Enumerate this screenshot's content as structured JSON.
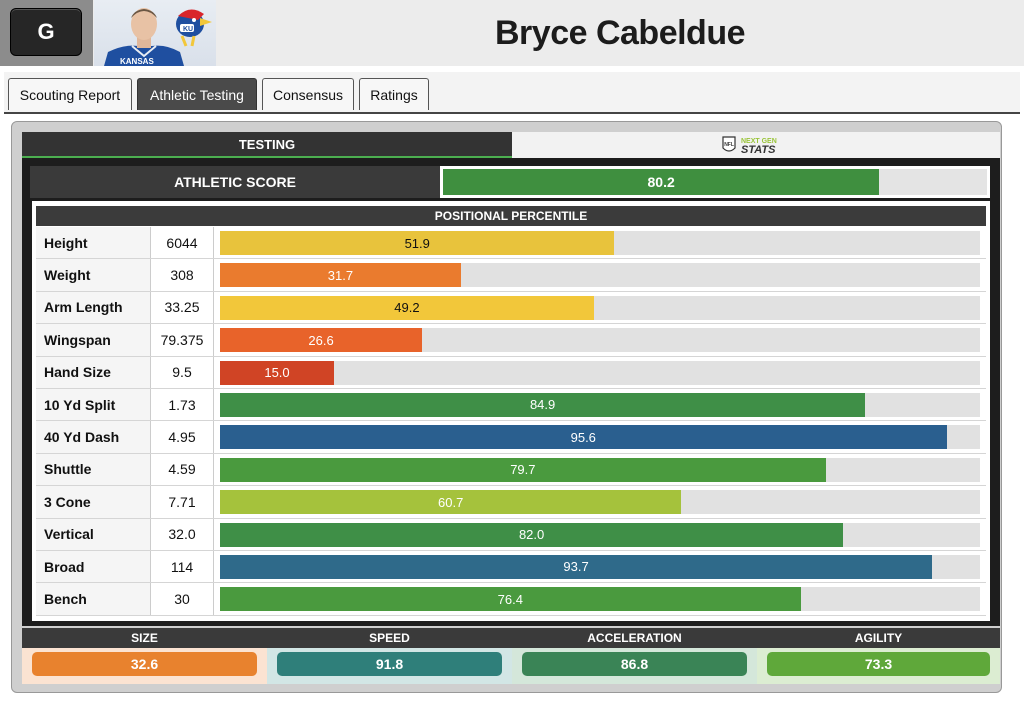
{
  "header": {
    "position": "G",
    "player_name": "Bryce Cabeldue",
    "photo_text": "KANSAS",
    "logo_text": "KU"
  },
  "tabs": [
    {
      "label": "Scouting Report",
      "active": false
    },
    {
      "label": "Athletic Testing",
      "active": true
    },
    {
      "label": "Consensus",
      "active": false
    },
    {
      "label": "Ratings",
      "active": false
    }
  ],
  "subtabs": {
    "testing": "TESTING",
    "ngs_top": "NEXT GEN",
    "ngs_bottom": "STATS",
    "ngs_badge": "NFL"
  },
  "athletic_score": {
    "label": "ATHLETIC SCORE",
    "value": 80.2,
    "display": "80.2",
    "color": "#3f8f3f"
  },
  "percentile_header": "POSITIONAL PERCENTILE",
  "metrics": [
    {
      "label": "Height",
      "value": "6044",
      "percentile": 51.9,
      "display": "51.9",
      "color": "#e8c33c",
      "text_color": "#111111"
    },
    {
      "label": "Weight",
      "value": "308",
      "percentile": 31.7,
      "display": "31.7",
      "color": "#ea7b2e",
      "text_color": "#ffffff"
    },
    {
      "label": "Arm Length",
      "value": "33.25",
      "percentile": 49.2,
      "display": "49.2",
      "color": "#f2c73a",
      "text_color": "#111111"
    },
    {
      "label": "Wingspan",
      "value": "79.375",
      "percentile": 26.6,
      "display": "26.6",
      "color": "#e8632a",
      "text_color": "#ffffff"
    },
    {
      "label": "Hand Size",
      "value": "9.5",
      "percentile": 15.0,
      "display": "15.0",
      "color": "#d04425",
      "text_color": "#ffffff"
    },
    {
      "label": "10 Yd Split",
      "value": "1.73",
      "percentile": 84.9,
      "display": "84.9",
      "color": "#3f8f47",
      "text_color": "#ffffff"
    },
    {
      "label": "40 Yd Dash",
      "value": "4.95",
      "percentile": 95.6,
      "display": "95.6",
      "color": "#2a5f8f",
      "text_color": "#ffffff"
    },
    {
      "label": "Shuttle",
      "value": "4.59",
      "percentile": 79.7,
      "display": "79.7",
      "color": "#4a9a3e",
      "text_color": "#ffffff"
    },
    {
      "label": "3 Cone",
      "value": "7.71",
      "percentile": 60.7,
      "display": "60.7",
      "color": "#a5c23c",
      "text_color": "#ffffff"
    },
    {
      "label": "Vertical",
      "value": "32.0",
      "percentile": 82.0,
      "display": "82.0",
      "color": "#3f8f47",
      "text_color": "#ffffff"
    },
    {
      "label": "Broad",
      "value": "114",
      "percentile": 93.7,
      "display": "93.7",
      "color": "#2f6a8a",
      "text_color": "#ffffff"
    },
    {
      "label": "Bench",
      "value": "30",
      "percentile": 76.4,
      "display": "76.4",
      "color": "#4a9a3e",
      "text_color": "#ffffff"
    }
  ],
  "summary": [
    {
      "label": "SIZE",
      "value": "32.6",
      "color": "#e8822e",
      "bg": "#fbe3d2"
    },
    {
      "label": "SPEED",
      "value": "91.8",
      "color": "#2f7f7a",
      "bg": "#d2e6e5"
    },
    {
      "label": "ACCELERATION",
      "value": "86.8",
      "color": "#3a8456",
      "bg": "#d4e7da"
    },
    {
      "label": "AGILITY",
      "value": "73.3",
      "color": "#5fa83a",
      "bg": "#dcedd2"
    }
  ]
}
